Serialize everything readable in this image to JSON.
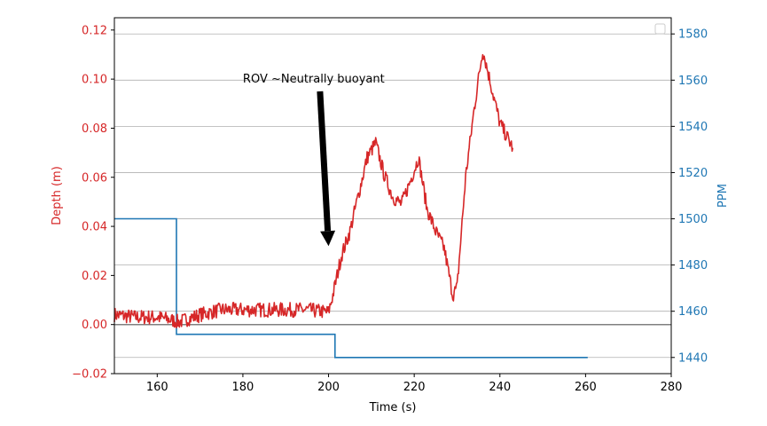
{
  "chart_data": {
    "type": "line",
    "xlabel": "Time (s)",
    "ylabel_left": "Depth (m)",
    "ylabel_right": "PPM",
    "xlim": [
      150,
      280
    ],
    "ylim_left": [
      -0.02,
      0.125
    ],
    "ylim_right": [
      1433,
      1587
    ],
    "x_ticks": [
      160,
      180,
      200,
      220,
      240,
      260,
      280
    ],
    "y_left_ticks": [
      -0.02,
      0.0,
      0.02,
      0.04,
      0.06,
      0.08,
      0.1,
      0.12
    ],
    "y_left_tick_labels": [
      "−0.02",
      "0.00",
      "0.02",
      "0.04",
      "0.06",
      "0.08",
      "0.10",
      "0.12"
    ],
    "y_right_ticks": [
      1440,
      1460,
      1480,
      1500,
      1520,
      1540,
      1560,
      1580
    ],
    "grid": "horizontal on right axis",
    "legend": "top-right (empty)",
    "colors": {
      "depth": "#d62728",
      "ppm": "#1f77b4",
      "zero_line": "#808080",
      "grid": "#b0b0b0",
      "annotation": "#000000"
    },
    "annotation": {
      "text": "ROV ~Neutrally buoyant",
      "text_x": 180,
      "text_y": 0.1,
      "arrow_start": [
        198,
        0.095
      ],
      "arrow_end": [
        200,
        0.032
      ]
    },
    "series": [
      {
        "axis": "left",
        "noise": 0.003,
        "x": [
          150,
          155,
          160,
          163,
          165,
          170,
          175,
          180,
          185,
          190,
          195,
          200,
          201,
          203,
          205,
          207,
          209,
          211,
          213,
          215,
          217,
          219,
          221,
          223,
          225,
          227,
          229,
          230,
          232,
          234,
          236,
          238,
          240,
          243
        ],
        "values": [
          0.004,
          0.003,
          0.003,
          0.002,
          0.001,
          0.004,
          0.006,
          0.006,
          0.006,
          0.006,
          0.006,
          0.005,
          0.012,
          0.028,
          0.038,
          0.053,
          0.068,
          0.074,
          0.061,
          0.052,
          0.049,
          0.058,
          0.068,
          0.047,
          0.038,
          0.031,
          0.012,
          0.015,
          0.06,
          0.088,
          0.112,
          0.097,
          0.082,
          0.072
        ]
      },
      {
        "axis": "right",
        "step": true,
        "x": [
          150,
          164.5,
          164.5,
          201.5,
          201.5,
          260.5
        ],
        "values": [
          1500,
          1500,
          1450,
          1450,
          1440,
          1440
        ]
      }
    ]
  }
}
